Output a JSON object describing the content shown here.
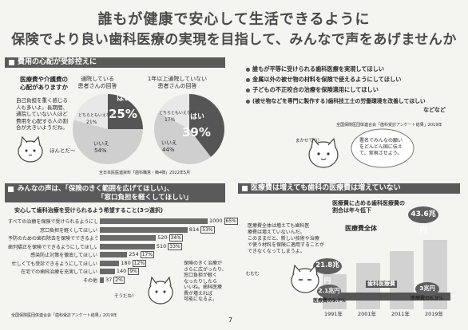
{
  "title": {
    "line1": "誰もが健康で安心して生活できるように",
    "line2": "保険でより良い歯科医療の実現を目指して、みんなで声をあげませんか"
  },
  "section1": {
    "heading": "費用の心配が受診控えに",
    "subtitle_line1": "医療費や介護費の",
    "subtitle_line2": "心配がありますか",
    "body_lines": [
      "自己負担を重く感じる",
      "人も多いよ。長期間、",
      "通院していない人ほど",
      "費用を心配する人の割",
      "合が大きいようだね。"
    ],
    "cat_caption": "ほんとだ〜",
    "pie1": {
      "caption_line1": "通院している",
      "caption_line2": "患者さんの回答",
      "yes_label": "はい",
      "yes_value": "25%",
      "no_label": "いいえ",
      "no_value": "54%",
      "unknown_label": "どちらともいえない",
      "unknown_value": "21%"
    },
    "pie2": {
      "caption_line1": "1年以上通院していない",
      "caption_line2": "患者さんの回答",
      "yes_label": "はい",
      "yes_value": "39%",
      "no_label": "いいえ",
      "no_value": "44%",
      "unknown_label": "どちらともいえない",
      "unknown_value": "17%"
    },
    "source": "全日本民医連資料「歯科職意・簡4弾」2022年5月"
  },
  "section2": {
    "bullets": [
      "誰もが平等に受けられる歯科医療を実現してほしい",
      "金属以外の被せ物の材料を保険で使えるようにしてほしい",
      "子どもの不正咬合の治療を保険適用にしてほしい",
      "(被せ物などを専門に製作する)歯科技工士の労働環境を改善してほしい"
    ],
    "etc": "などなど",
    "source": "全国保険医団体連合会「歯科受診アンケート結果」2019年",
    "cat_caption": "まかせてね！",
    "balloon_line1": "署名でみんなの願い",
    "balloon_line2": "をどんどん国に伝え",
    "balloon_line3": "て、実現させよう。"
  },
  "section3": {
    "heading_line1": "みんなの声は、「保険のきく範囲を広げてほしい」、",
    "heading_line2": "「窓口負担を軽くしてほしい」",
    "chart_title": "安心して歯科治療を受けられるよう希望すること(3つ選択)",
    "side_text": [
      "保険のきく治療が",
      "さらに広がったり、",
      "窓口負担が軽く",
      "なったりしたら",
      "いいね。歯科医療",
      "費が増えれば",
      "可能になるよ。"
    ],
    "cat_caption": "そうだね！",
    "source": "全国保険医団体連合会「歯科受診アンケート結果」2019年"
  },
  "section4": {
    "heading": "医療費は増えても歯科の医療費は増えていない",
    "chart_title_line1": "医療費に占める歯科医療費の",
    "chart_title_line2": "割合は年々低下",
    "series_total_label": "医療費全体",
    "series_dental_label": "歯科医療費",
    "body_lines": [
      "医療費全体は増えても歯科医",
      "療費は増えていないんだ。",
      "このままだと、新しい技術や治療",
      "で使う材料を保険に適用することが",
      "できなくなってしまうよ。"
    ],
    "cat_caption": "むむむ",
    "unit": "兆円",
    "dental_share_prefix": "医療費の"
  },
  "page_number": "7",
  "chart_data": [
    {
      "type": "bar",
      "orientation": "horizontal",
      "title": "安心して歯科治療を受けられるよう希望すること(3つ選択)",
      "categories": [
        "すべての治療を保険で受けられるようにしてほしい",
        "窓口負担を軽くしてほしい",
        "予防のための歯石除去を保険でできるようにしてほしい",
        "歯列矯正を保険でできるようにしてほしい",
        "感染防止対策を徹底してほしい",
        "忙しくても受診できるようにしてほしい",
        "在宅での歯科治療を充実してほしい",
        "その他"
      ],
      "values": [
        1000,
        814,
        520,
        510,
        254,
        180,
        140,
        37
      ],
      "percent_labels": [
        "65%",
        "53%",
        "34%",
        "33%",
        "17%",
        "12%",
        "9%",
        "2%"
      ]
    },
    {
      "type": "bar",
      "title": "医療費に占める歯科医療費の割合は年々低下",
      "categories": [
        "1991年",
        "2001年",
        "2011年",
        "2019年"
      ],
      "series": [
        {
          "name": "医療費全体",
          "values": [
            21.8,
            null,
            null,
            43.6
          ]
        },
        {
          "name": "歯科医療費",
          "values": [
            2.1,
            null,
            null,
            3.0
          ],
          "share_labels": [
            "9.7%",
            null,
            null,
            "6.9%"
          ]
        }
      ]
    }
  ]
}
